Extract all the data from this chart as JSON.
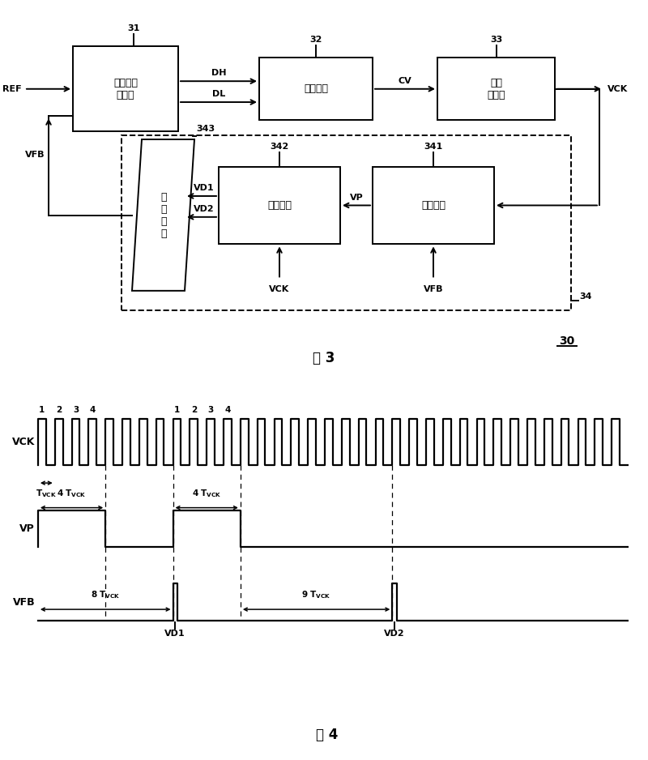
{
  "fig_width": 8.0,
  "fig_height": 9.38,
  "bg_color": "#ffffff",
  "fig3": {
    "title": "图 3",
    "ref_label": "REF",
    "vck_label": "VCK",
    "vfb_label": "VFB",
    "label_30": "30",
    "label_31": "31",
    "label_32": "32",
    "label_33": "33",
    "label_34": "34",
    "label_341": "341",
    "label_342": "342",
    "label_343": "343",
    "dh_label": "DH",
    "dl_label": "DL",
    "cv_label": "CV",
    "vp_label": "VP",
    "vd1_label": "VD1",
    "vd2_label": "VD2",
    "vck_inner_label": "VCK",
    "vfb_inner_label": "VFB",
    "box31_text": "相位频率\n侦侧器",
    "box32_text": "电荷帮浦",
    "box33_text": "压控\n振荡器",
    "box341_text": "除频电路",
    "box342_text": "延迟电路",
    "box343_text": "选\n择\n电\n路"
  },
  "fig4": {
    "title": "图 4",
    "vck_label": "VCK",
    "vp_label": "VP",
    "vfb_label": "VFB",
    "vd1_label": "VD1",
    "vd2_label": "VD2"
  }
}
